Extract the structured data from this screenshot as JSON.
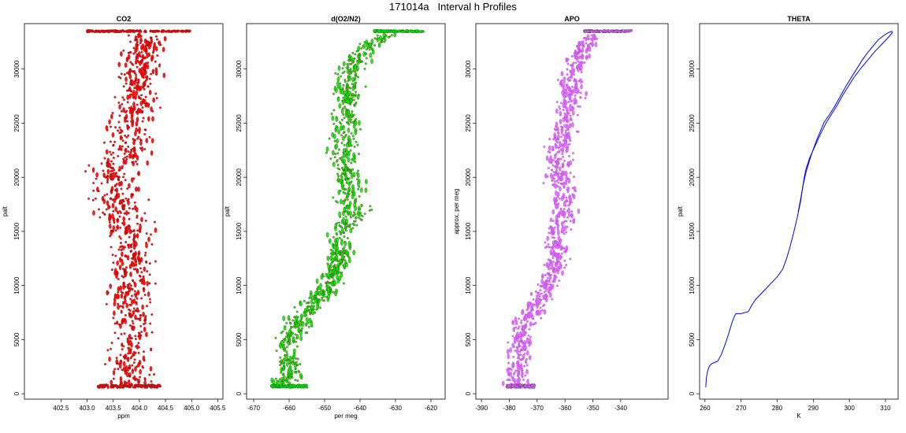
{
  "figure": {
    "title": "171014a   Interval h Profiles"
  },
  "colors": {
    "co2": "#ff0000",
    "o2n2": "#00ee00",
    "apo": "#e066ff",
    "theta": "#0000ff",
    "outline": "#000000"
  },
  "chart_data": [
    {
      "type": "scatter",
      "title": "CO2",
      "xlabel": "ppm",
      "ylabel": "palt",
      "xlim": [
        401.8,
        405.6
      ],
      "ylim": [
        -500,
        34200
      ],
      "xticks": [
        "402.5",
        "403.0",
        "403.5",
        "404.0",
        "404.5",
        "405.0",
        "405.5"
      ],
      "yticks": [
        "0",
        "5000",
        "10000",
        "15000",
        "20000",
        "25000",
        "30000"
      ],
      "profile": {
        "y": [
          700,
          3000,
          6000,
          9000,
          12000,
          15000,
          17000,
          19000,
          21000,
          23000,
          25000,
          27000,
          29000,
          31000,
          33500
        ],
        "x": [
          403.85,
          403.8,
          403.85,
          403.8,
          403.85,
          403.8,
          403.6,
          403.5,
          403.6,
          403.8,
          403.85,
          404.0,
          404.0,
          404.05,
          404.1
        ],
        "spread": [
          0.35,
          0.35,
          0.35,
          0.35,
          0.35,
          0.4,
          0.45,
          0.45,
          0.45,
          0.4,
          0.4,
          0.35,
          0.35,
          0.35,
          0.3
        ]
      },
      "baseline": {
        "y": 700,
        "x_range": [
          403.2,
          404.4
        ]
      },
      "top_band": {
        "y": 33500,
        "x_range": [
          403.0,
          405.0
        ]
      }
    },
    {
      "type": "scatter",
      "title": "d(O2/N2)",
      "xlabel": "per meg",
      "ylabel": "palt",
      "xlim": [
        -672,
        -616
      ],
      "ylim": [
        -500,
        34200
      ],
      "xticks": [
        "-670",
        "-660",
        "-650",
        "-640",
        "-630",
        "-620"
      ],
      "yticks": [
        "0",
        "5000",
        "10000",
        "15000",
        "20000",
        "25000",
        "30000"
      ],
      "profile": {
        "y": [
          700,
          2500,
          5000,
          7000,
          9000,
          12000,
          15000,
          17000,
          19000,
          21000,
          23000,
          25000,
          27000,
          29000,
          31000,
          32500,
          33500
        ],
        "x": [
          -661,
          -660,
          -660,
          -657,
          -651,
          -646,
          -645,
          -642,
          -643,
          -644,
          -645,
          -644,
          -643,
          -644,
          -641,
          -636,
          -630
        ],
        "spread": [
          3.5,
          3.5,
          3.5,
          4,
          3,
          3,
          3.5,
          4,
          4,
          3.5,
          3.5,
          3.5,
          3.5,
          3.5,
          3.5,
          3,
          4
        ]
      },
      "baseline": {
        "y": 700,
        "x_range": [
          -665,
          -655
        ]
      },
      "top_band": {
        "y": 33500,
        "x_range": [
          -636,
          -622
        ]
      }
    },
    {
      "type": "scatter",
      "title": "APO",
      "xlabel": "",
      "ylabel": "approx. per meg",
      "xlim": [
        -392,
        -323
      ],
      "ylim": [
        -500,
        34200
      ],
      "xticks": [
        "-390",
        "-380",
        "-370",
        "-360",
        "-350",
        "-340"
      ],
      "yticks": [
        "0",
        "5000",
        "10000",
        "15000",
        "20000",
        "25000",
        "30000"
      ],
      "profile": {
        "y": [
          700,
          2500,
          5000,
          7000,
          9000,
          12000,
          15000,
          17000,
          19000,
          21000,
          23000,
          25000,
          27000,
          29000,
          31000,
          32500,
          33500
        ],
        "x": [
          -378,
          -377,
          -376,
          -374,
          -368,
          -363,
          -362,
          -360,
          -361,
          -362,
          -362,
          -360,
          -358,
          -358,
          -355,
          -352,
          -347
        ],
        "spread": [
          4,
          4,
          4,
          4.5,
          3.5,
          3.5,
          4,
          4.5,
          4.5,
          4,
          4,
          4,
          4,
          4,
          4,
          3.5,
          4
        ]
      },
      "baseline": {
        "y": 700,
        "x_range": [
          -381,
          -371
        ]
      },
      "top_band": {
        "y": 33500,
        "x_range": [
          -353,
          -336
        ]
      }
    },
    {
      "type": "line",
      "title": "THETA",
      "xlabel": "K",
      "ylabel": "palt",
      "xlim": [
        258.5,
        313.5
      ],
      "ylim": [
        -500,
        34200
      ],
      "xticks": [
        "260",
        "270",
        "280",
        "290",
        "300",
        "310"
      ],
      "yticks": [
        "0",
        "5000",
        "10000",
        "15000",
        "20000",
        "25000",
        "30000"
      ],
      "series": [
        {
          "x": [
            260.2,
            260.4,
            260.8,
            261.3,
            262.0,
            263.5,
            264.5,
            265.5,
            266.5,
            267.5,
            268.2,
            268.6,
            270.0,
            272.0,
            273.0,
            274.0,
            276.0,
            278.0,
            280.0,
            281.5,
            282.5,
            283.5,
            284.5,
            285.5,
            286.5,
            287.0,
            287.5,
            288.0,
            289.0,
            290.5,
            292.0,
            293.5,
            295.0,
            296.5,
            298.0,
            299.5,
            301.0,
            303.0,
            305.0,
            307.0,
            309.0,
            311.0,
            312.0
          ],
          "y": [
            600,
            1500,
            2200,
            2600,
            2800,
            3000,
            3600,
            4500,
            5500,
            6600,
            7200,
            7400,
            7400,
            7600,
            8200,
            8700,
            9400,
            10100,
            10800,
            11500,
            12400,
            13500,
            14800,
            16200,
            17800,
            19000,
            20000,
            20800,
            21800,
            22900,
            24000,
            25000,
            25800,
            26600,
            27500,
            28300,
            29100,
            30000,
            30800,
            31600,
            32300,
            33000,
            33400
          ]
        },
        {
          "x": [
            285.8,
            286.5,
            287.2,
            288.0,
            289.0,
            290.0,
            291.0,
            292.0,
            293.0,
            294.5,
            296.0,
            297.5,
            299.0,
            300.5,
            302.0,
            303.5,
            305.0,
            306.5,
            308.0,
            309.5,
            311.0,
            312.0
          ],
          "y": [
            16800,
            18000,
            19300,
            20500,
            21600,
            22600,
            23500,
            24300,
            25100,
            25800,
            26600,
            27500,
            28400,
            29200,
            30000,
            30800,
            31500,
            32100,
            32700,
            33100,
            33400,
            33500
          ]
        }
      ]
    }
  ]
}
